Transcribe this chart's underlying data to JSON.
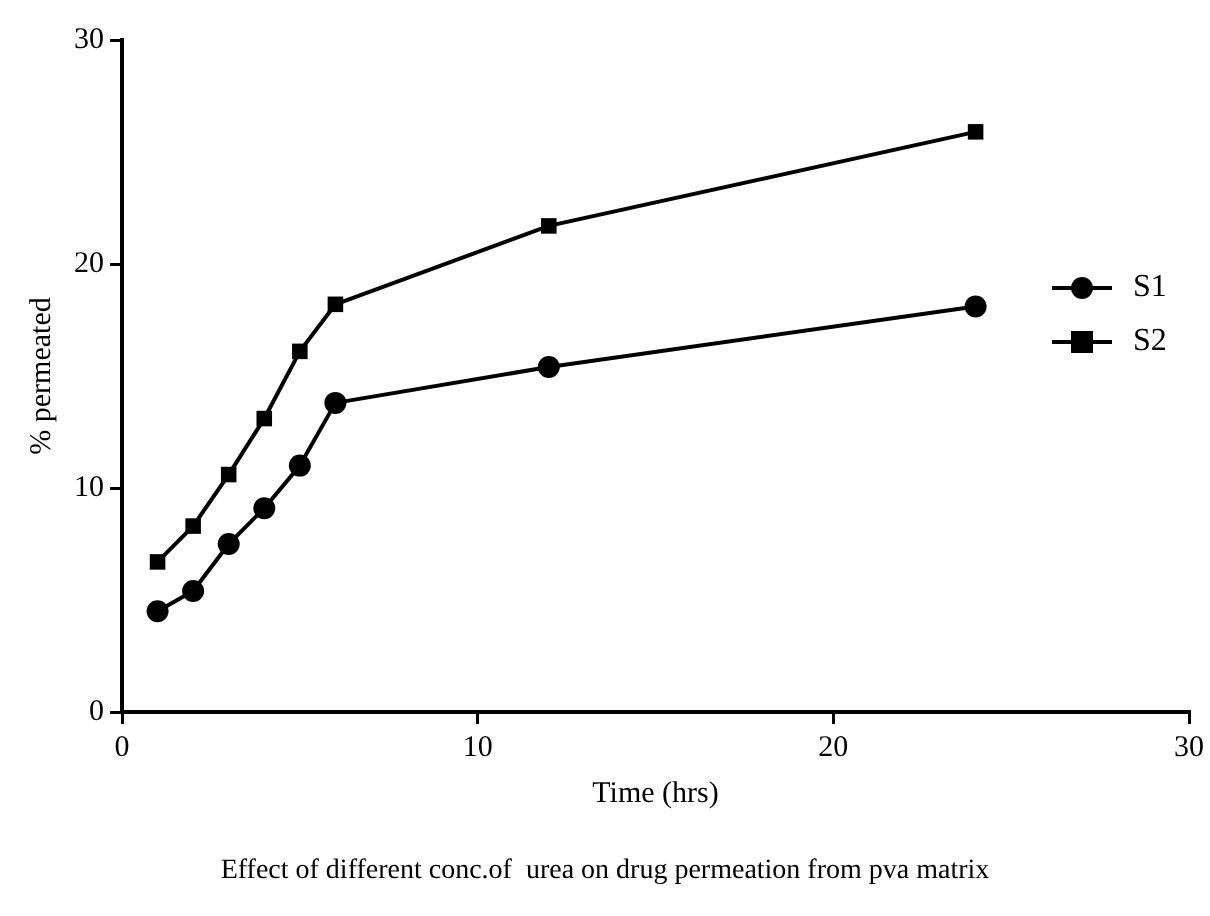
{
  "chart_data": {
    "type": "line",
    "xlabel": "Time (hrs)",
    "ylabel": "% permeated",
    "annotations": [
      "Effect of different conc.of  urea on drug permeation from pva matrix"
    ],
    "x": [
      1,
      2,
      3,
      4,
      5,
      6,
      12,
      24
    ],
    "series": [
      {
        "name": "S1",
        "color": "#000000",
        "marker": "circle",
        "values": [
          4.5,
          5.4,
          7.5,
          9.1,
          11.0,
          13.8,
          15.4,
          18.1
        ]
      },
      {
        "name": "S2",
        "color": "#000000",
        "marker": "square",
        "values": [
          6.7,
          8.3,
          10.6,
          13.1,
          16.1,
          18.2,
          21.7,
          25.9
        ]
      }
    ],
    "xlim": [
      0,
      30
    ],
    "xticks": [
      0,
      10,
      20,
      30
    ],
    "ylim": [
      0,
      30
    ],
    "yticks": [
      0,
      10,
      20,
      30
    ],
    "grid": false,
    "legend": "right",
    "line_style": "solid"
  }
}
